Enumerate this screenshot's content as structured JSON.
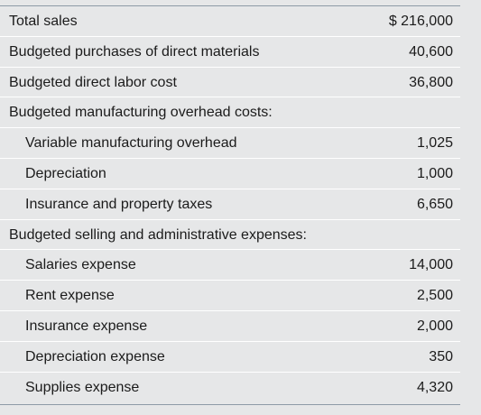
{
  "rows": [
    {
      "label": "Total sales",
      "value": "$ 216,000",
      "indent": false
    },
    {
      "label": "Budgeted purchases of direct materials",
      "value": "40,600",
      "indent": false
    },
    {
      "label": "Budgeted direct labor cost",
      "value": "36,800",
      "indent": false
    },
    {
      "label": "Budgeted manufacturing overhead costs:",
      "value": "",
      "indent": false
    },
    {
      "label": "Variable manufacturing overhead",
      "value": "1,025",
      "indent": true
    },
    {
      "label": "Depreciation",
      "value": "1,000",
      "indent": true
    },
    {
      "label": "Insurance and property taxes",
      "value": "6,650",
      "indent": true
    },
    {
      "label": "Budgeted selling and administrative expenses:",
      "value": "",
      "indent": false
    },
    {
      "label": "Salaries expense",
      "value": "14,000",
      "indent": true
    },
    {
      "label": "Rent expense",
      "value": "2,500",
      "indent": true
    },
    {
      "label": "Insurance expense",
      "value": "2,000",
      "indent": true
    },
    {
      "label": "Depreciation expense",
      "value": "350",
      "indent": true
    },
    {
      "label": "Supplies expense",
      "value": "4,320",
      "indent": true
    }
  ]
}
